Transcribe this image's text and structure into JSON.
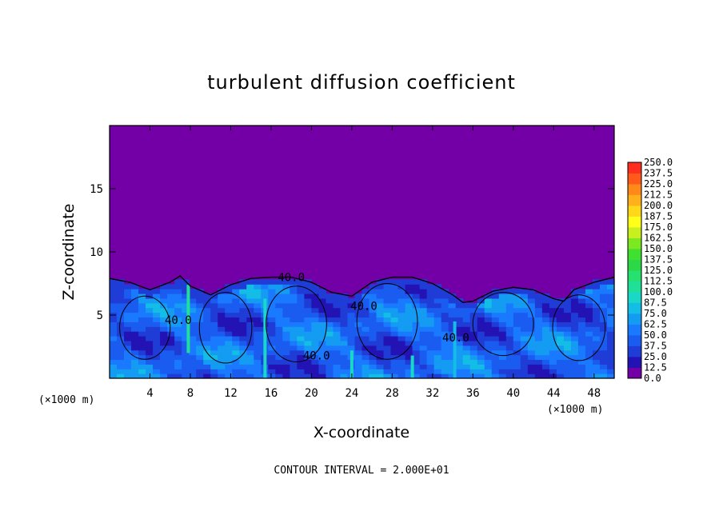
{
  "chart_data": {
    "type": "heatmap",
    "title": "turbulent diffusion coefficient",
    "xlabel": "X-coordinate",
    "ylabel": "Z-coordinate",
    "x_unit_left": "(×1000 m)",
    "x_unit_right": "(×1000 m)",
    "xlim": [
      0,
      50
    ],
    "ylim": [
      0,
      20
    ],
    "xticks": [
      4,
      8,
      12,
      16,
      20,
      24,
      28,
      32,
      36,
      40,
      44,
      48
    ],
    "yticks": [
      5,
      10,
      15
    ],
    "colorbar": {
      "levels": [
        0.0,
        12.5,
        25.0,
        37.5,
        50.0,
        62.5,
        75.0,
        87.5,
        100.0,
        112.5,
        125.0,
        137.5,
        150.0,
        162.5,
        175.0,
        187.5,
        200.0,
        212.5,
        225.0,
        237.5,
        250.0
      ],
      "labels": [
        "0.0",
        "12.5",
        "25.0",
        "37.5",
        "50.0",
        "62.5",
        "75.0",
        "87.5",
        "100.0",
        "112.5",
        "125.0",
        "137.5",
        "150.0",
        "162.5",
        "175.0",
        "187.5",
        "200.0",
        "212.5",
        "225.0",
        "237.5",
        "250.0"
      ],
      "colors": [
        "#7300a6",
        "#2312b4",
        "#1f3cd6",
        "#1b5cf0",
        "#1a7aff",
        "#149bf2",
        "#13bde6",
        "#1ad8c8",
        "#20e098",
        "#26e070",
        "#2cd846",
        "#40e030",
        "#7ce822",
        "#c8f01e",
        "#ffff1a",
        "#ffd81a",
        "#ffb01a",
        "#ff8a1a",
        "#ff5a1a",
        "#ff2e20",
        "#f47c7c"
      ]
    },
    "boundary_layer_top": [
      [
        0,
        7.9
      ],
      [
        2,
        7.6
      ],
      [
        4,
        7.0
      ],
      [
        6,
        7.6
      ],
      [
        7,
        8.1
      ],
      [
        8,
        7.3
      ],
      [
        10,
        6.6
      ],
      [
        12,
        7.4
      ],
      [
        14,
        7.9
      ],
      [
        16,
        8.0
      ],
      [
        18,
        8.0
      ],
      [
        20,
        7.6
      ],
      [
        22,
        6.8
      ],
      [
        24,
        6.5
      ],
      [
        26,
        7.6
      ],
      [
        28,
        8.0
      ],
      [
        30,
        8.0
      ],
      [
        32,
        7.5
      ],
      [
        34,
        6.6
      ],
      [
        35,
        6.0
      ],
      [
        36,
        6.1
      ],
      [
        38,
        6.9
      ],
      [
        40,
        7.2
      ],
      [
        42,
        7.0
      ],
      [
        44,
        6.3
      ],
      [
        45,
        6.1
      ],
      [
        46,
        7.0
      ],
      [
        48,
        7.6
      ],
      [
        50,
        8.0
      ]
    ],
    "contour_labels": [
      {
        "text": "40.0",
        "x": 18.0,
        "y": 7.7
      },
      {
        "text": "40.0",
        "x": 25.2,
        "y": 5.4
      },
      {
        "text": "40.0",
        "x": 20.5,
        "y": 1.5
      },
      {
        "text": "40.0",
        "x": 6.8,
        "y": 4.3
      },
      {
        "text": "40.0",
        "x": 34.3,
        "y": 2.9
      }
    ],
    "note": "CONTOUR INTERVAL = 2.000E+01"
  }
}
